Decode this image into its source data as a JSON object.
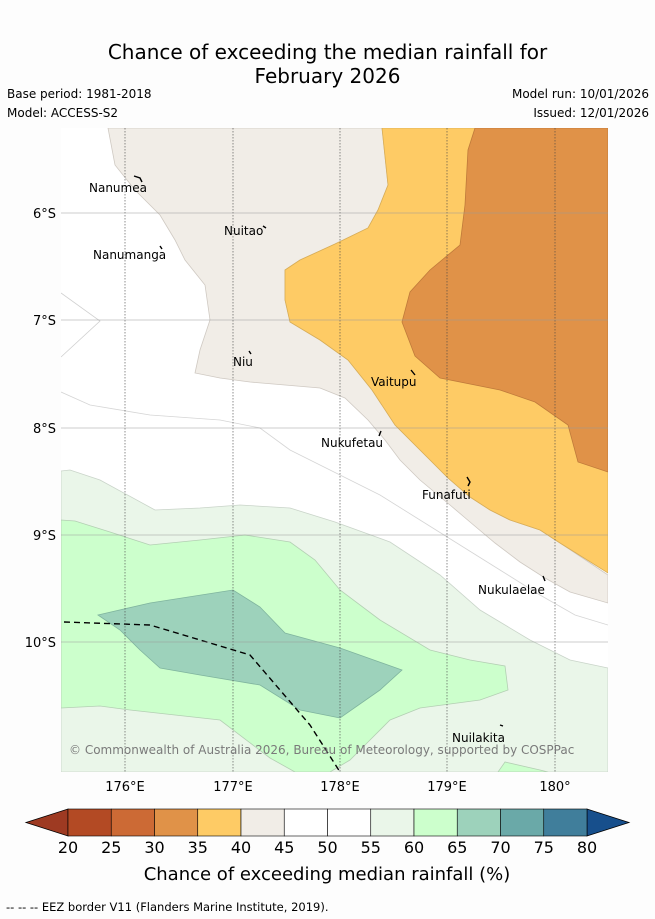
{
  "title_line1": "Chance of exceeding the median rainfall for",
  "title_line2": "February 2026",
  "base_period": "Base period: 1981-2018",
  "model": "Model: ACCESS-S2",
  "model_run": "Model run: 10/01/2026",
  "issued": "Issued: 12/01/2026",
  "map": {
    "places": [
      "Nanumea",
      "Nuitao",
      "Nanumanga",
      "Niu",
      "Vaitupu",
      "Nukufetau",
      "Funafuti",
      "Nukulaelae",
      "Nuilakita"
    ],
    "lon_ticks": [
      "176°E",
      "177°E",
      "178°E",
      "179°E",
      "180°"
    ],
    "lat_ticks": [
      "6°S",
      "7°S",
      "8°S",
      "9°S",
      "10°S"
    ],
    "copyright": "© Commonwealth of Australia 2026, Bureau of Meteorology, supported by COSPPac"
  },
  "colorbar": {
    "ticks": [
      "20",
      "25",
      "30",
      "35",
      "40",
      "45",
      "50",
      "55",
      "60",
      "65",
      "70",
      "75",
      "80"
    ],
    "low_color": "#9e3a22",
    "high_color": "#174f8c",
    "colors": [
      "#b34a24",
      "#cc6a35",
      "#e09248",
      "#fecb65",
      "#f1ede7",
      "#ffffff",
      "#ffffff",
      "#eaf6e9",
      "#ccffcc",
      "#9dd2bb",
      "#6aa9a8",
      "#407e9b"
    ],
    "label": "Chance of exceeding median rainfall (%)"
  },
  "footer": "-- -- -- EEZ border V11 (Flanders Marine Institute, 2019)."
}
